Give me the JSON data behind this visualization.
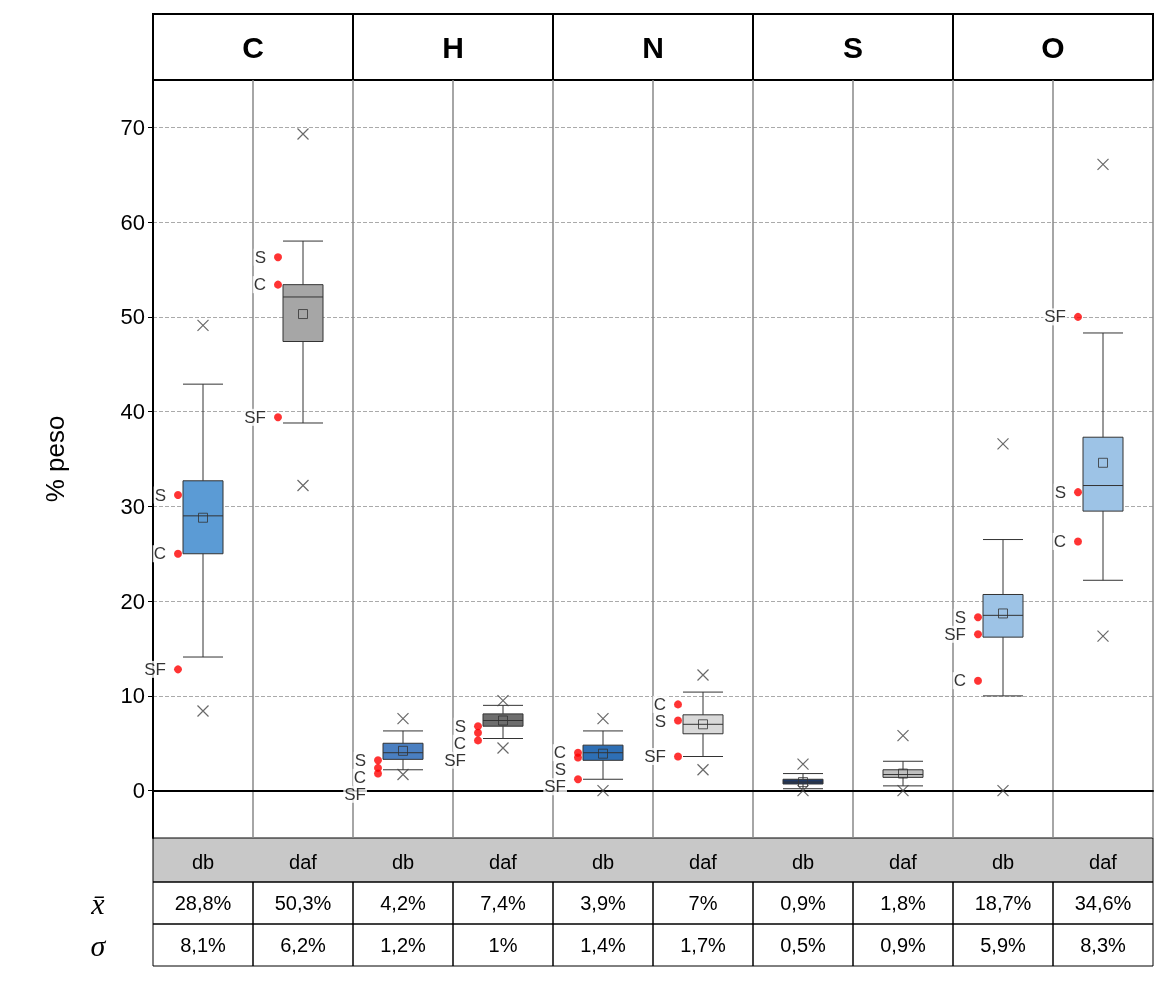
{
  "chart_data": {
    "type": "box",
    "ylabel": "% peso",
    "categories": [
      "db",
      "daf",
      "db",
      "daf",
      "db",
      "daf",
      "db",
      "daf",
      "db",
      "daf"
    ],
    "ylim": [
      -5,
      75
    ],
    "yticks": [
      0,
      10,
      20,
      30,
      40,
      50,
      60,
      70
    ],
    "grid": true,
    "annotations": [
      "C",
      "H",
      "N",
      "S",
      "O",
      "x̄",
      "28,8%",
      "50,3%",
      "4,2%",
      "7,4%",
      "3,9%",
      "7%",
      "0,9%",
      "1,8%",
      "18,7%",
      "34,6%",
      "σ",
      "8,1%",
      "6,2%",
      "1,2%",
      "1%",
      "1,4%",
      "1,7%",
      "0,5%",
      "0,9%",
      "5,9%",
      "8,3%"
    ],
    "series": [
      {
        "type": "box",
        "colors": [
          "#5b9bd5",
          "#a6a6a6",
          "#4a7fc1",
          "#6e6e6e",
          "#2e6fb5",
          "#d9d9d9",
          "#1f3864",
          "#bfbfbf",
          "#9dc3e6",
          "#9dc3e6"
        ],
        "boxes": [
          {
            "low": 14.1,
            "q1": 25.0,
            "median": 29.0,
            "q3": 32.7,
            "high": 42.9,
            "mean": 28.8,
            "outliers": [
              49.1,
              8.4
            ]
          },
          {
            "low": 38.8,
            "q1": 47.4,
            "median": 52.1,
            "q3": 53.4,
            "high": 58.0,
            "mean": 50.3,
            "outliers": [
              69.3,
              32.2
            ]
          },
          {
            "low": 2.2,
            "q1": 3.3,
            "median": 4.0,
            "q3": 5.0,
            "high": 6.3,
            "mean": 4.2,
            "outliers": [
              7.6,
              1.7
            ]
          },
          {
            "low": 5.5,
            "q1": 6.8,
            "median": 7.4,
            "q3": 8.1,
            "high": 9.0,
            "mean": 7.4,
            "outliers": [
              9.5,
              4.5
            ]
          },
          {
            "low": 1.2,
            "q1": 3.2,
            "median": 4.0,
            "q3": 4.8,
            "high": 6.3,
            "mean": 3.9,
            "outliers": [
              7.6,
              0
            ]
          },
          {
            "low": 3.6,
            "q1": 6.0,
            "median": 7.0,
            "q3": 8.0,
            "high": 10.4,
            "mean": 7.0,
            "outliers": [
              12.2,
              2.2
            ]
          },
          {
            "low": 0.2,
            "q1": 0.7,
            "median": 0.9,
            "q3": 1.2,
            "high": 1.8,
            "mean": 0.9,
            "outliers": [
              2.8,
              0
            ]
          },
          {
            "low": 0.5,
            "q1": 1.4,
            "median": 1.7,
            "q3": 2.2,
            "high": 3.1,
            "mean": 1.8,
            "outliers": [
              5.8,
              0
            ]
          },
          {
            "low": 10.0,
            "q1": 16.2,
            "median": 18.5,
            "q3": 20.7,
            "high": 26.5,
            "mean": 18.7,
            "outliers": [
              36.6,
              0
            ]
          },
          {
            "low": 22.2,
            "q1": 29.5,
            "median": 32.2,
            "q3": 37.3,
            "high": 48.3,
            "mean": 34.6,
            "outliers": [
              66.1,
              16.3
            ]
          }
        ]
      },
      {
        "type": "scatter",
        "name": "S",
        "color": "#ff0000",
        "values": [
          31.2,
          56.3,
          3.2,
          6.8,
          3.5,
          7.4,
          null,
          null,
          18.3,
          31.5
        ]
      },
      {
        "type": "scatter",
        "name": "C",
        "color": "#ff0000",
        "values": [
          25.0,
          53.4,
          2.4,
          6.1,
          4.0,
          9.1,
          null,
          null,
          11.6,
          26.3
        ]
      },
      {
        "type": "scatter",
        "name": "SF",
        "color": "#ff0000",
        "values": [
          12.8,
          39.4,
          1.8,
          5.3,
          1.2,
          3.6,
          null,
          null,
          16.5,
          50.0
        ]
      }
    ]
  }
}
